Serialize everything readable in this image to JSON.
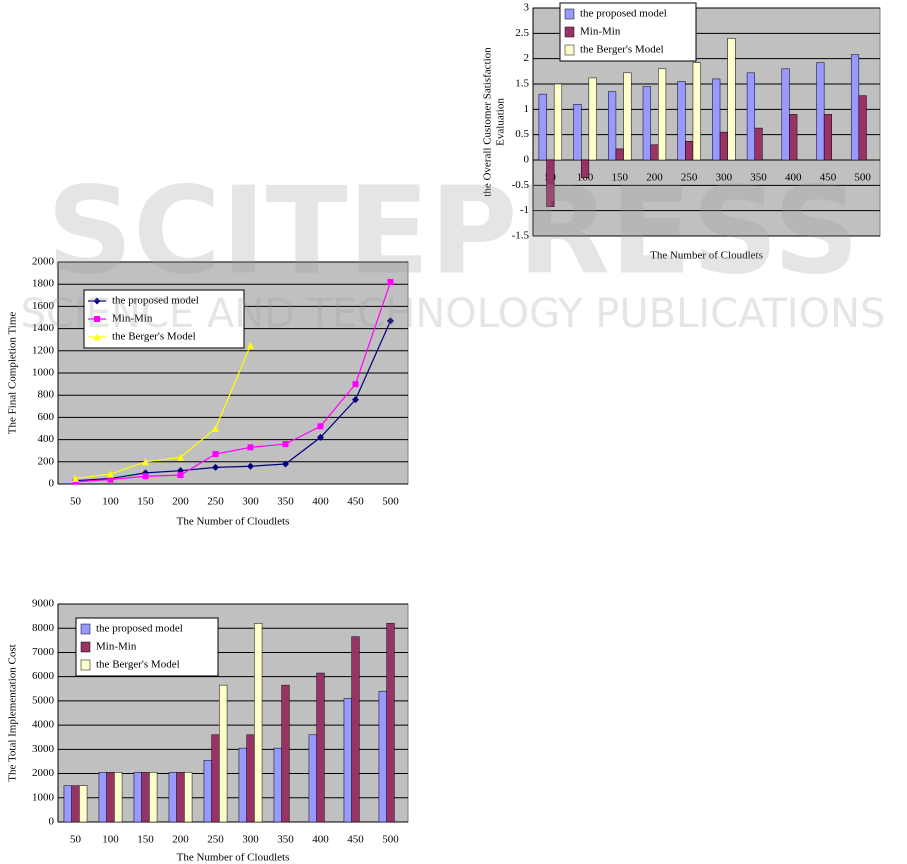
{
  "chart_data": [
    {
      "type": "bar",
      "y_label": [
        "the Overall Customer Satisfaction",
        "Evaluation"
      ],
      "x_label": "The Number of Cloudlets",
      "categories": [
        "50",
        "100",
        "150",
        "200",
        "250",
        "300",
        "350",
        "400",
        "450",
        "500"
      ],
      "series": [
        {
          "name": "the proposed model",
          "color": "#9999ff",
          "values": [
            1.3,
            1.1,
            1.35,
            1.45,
            1.55,
            1.6,
            1.72,
            1.8,
            1.92,
            2.08
          ]
        },
        {
          "name": "Min-Min",
          "color": "#993366",
          "values": [
            -0.92,
            -0.35,
            0.22,
            0.3,
            0.37,
            0.55,
            0.63,
            0.9,
            0.9,
            1.27
          ]
        },
        {
          "name": "the Berger's Model",
          "color": "#ffffcc",
          "values": [
            1.5,
            1.62,
            1.72,
            1.8,
            1.92,
            2.4,
            null,
            null,
            null,
            null
          ]
        }
      ],
      "ylim": [
        -1.5,
        3
      ],
      "yticks": [
        -1.5,
        -1,
        -0.5,
        0,
        0.5,
        1,
        1.5,
        2,
        2.5,
        3
      ],
      "grid": true,
      "legend": "top-left"
    },
    {
      "type": "line",
      "y_label": [
        "The Final Completion Time"
      ],
      "x_label": "The Number of Cloudlets",
      "categories": [
        "50",
        "100",
        "150",
        "200",
        "250",
        "300",
        "350",
        "400",
        "450",
        "500"
      ],
      "series": [
        {
          "name": "the proposed model",
          "color": "#000080",
          "marker": "diamond",
          "values": [
            30,
            50,
            100,
            120,
            150,
            160,
            180,
            420,
            760,
            1470
          ]
        },
        {
          "name": "Min-Min",
          "color": "#ff00ff",
          "marker": "square",
          "values": [
            20,
            40,
            70,
            80,
            270,
            330,
            360,
            520,
            900,
            1820
          ]
        },
        {
          "name": "the Berger's Model",
          "color": "#ffff00",
          "marker": "triangle",
          "values": [
            50,
            90,
            200,
            240,
            500,
            1250,
            null,
            null,
            null,
            null
          ]
        }
      ],
      "ylim": [
        0,
        2000
      ],
      "yticks": [
        0,
        200,
        400,
        600,
        800,
        1000,
        1200,
        1400,
        1600,
        1800,
        2000
      ],
      "grid": true,
      "legend": "top-left"
    },
    {
      "type": "bar",
      "y_label": [
        "The Total Implementation Cost"
      ],
      "x_label": "The Number of Cloudlets",
      "categories": [
        "50",
        "100",
        "150",
        "200",
        "250",
        "300",
        "350",
        "400",
        "450",
        "500"
      ],
      "series": [
        {
          "name": "the proposed model",
          "color": "#9999ff",
          "values": [
            1500,
            2050,
            2050,
            2050,
            2550,
            3050,
            3050,
            3600,
            5100,
            5400
          ]
        },
        {
          "name": "Min-Min",
          "color": "#993366",
          "values": [
            1500,
            2050,
            2050,
            2050,
            3600,
            3600,
            5650,
            6150,
            7650,
            8200
          ]
        },
        {
          "name": "the Berger's Model",
          "color": "#ffffcc",
          "values": [
            1500,
            2050,
            2050,
            2050,
            5650,
            8200,
            null,
            null,
            null,
            null
          ]
        }
      ],
      "ylim": [
        0,
        9000
      ],
      "yticks": [
        0,
        1000,
        2000,
        3000,
        4000,
        5000,
        6000,
        7000,
        8000,
        9000
      ],
      "grid": true,
      "legend": "top-left"
    }
  ],
  "watermark": {
    "title": "SCITEPRESS",
    "subtitle": "SCIENCE AND TECHNOLOGY PUBLICATIONS"
  }
}
